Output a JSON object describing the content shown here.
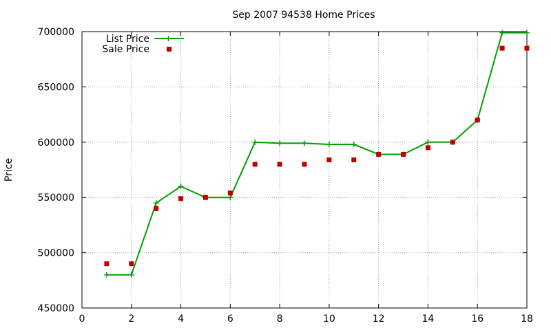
{
  "chart_data": {
    "type": "line",
    "title": "Sep 2007 94538 Home Prices",
    "xlabel": "",
    "ylabel": "Price",
    "xlim": [
      0,
      18
    ],
    "ylim": [
      450000,
      700000
    ],
    "xticks": [
      "0",
      "2",
      "4",
      "6",
      "8",
      "10",
      "12",
      "14",
      "16",
      "18"
    ],
    "yticks": [
      "450000",
      "500000",
      "550000",
      "600000",
      "650000",
      "700000"
    ],
    "grid": true,
    "legend_position": "top-left",
    "series": [
      {
        "name": "List Price",
        "style": "line-with-plus-markers",
        "color": "#00a000",
        "x": [
          1,
          2,
          3,
          4,
          5,
          6,
          7,
          8,
          9,
          10,
          11,
          12,
          13,
          14,
          15,
          16,
          17,
          18
        ],
        "y": [
          480000,
          480000,
          545000,
          560000,
          550000,
          550000,
          600000,
          599000,
          599000,
          598000,
          598000,
          589000,
          589000,
          600000,
          600000,
          620000,
          699000,
          699000
        ]
      },
      {
        "name": "Sale Price",
        "style": "square-markers",
        "color": "#c00000",
        "x": [
          1,
          2,
          3,
          4,
          5,
          6,
          7,
          8,
          9,
          10,
          11,
          12,
          13,
          14,
          15,
          16,
          17,
          18
        ],
        "y": [
          490000,
          490000,
          540000,
          549000,
          550000,
          554000,
          580000,
          580000,
          580000,
          584000,
          584000,
          589000,
          589000,
          595000,
          600000,
          620000,
          685000,
          685000
        ]
      }
    ]
  }
}
